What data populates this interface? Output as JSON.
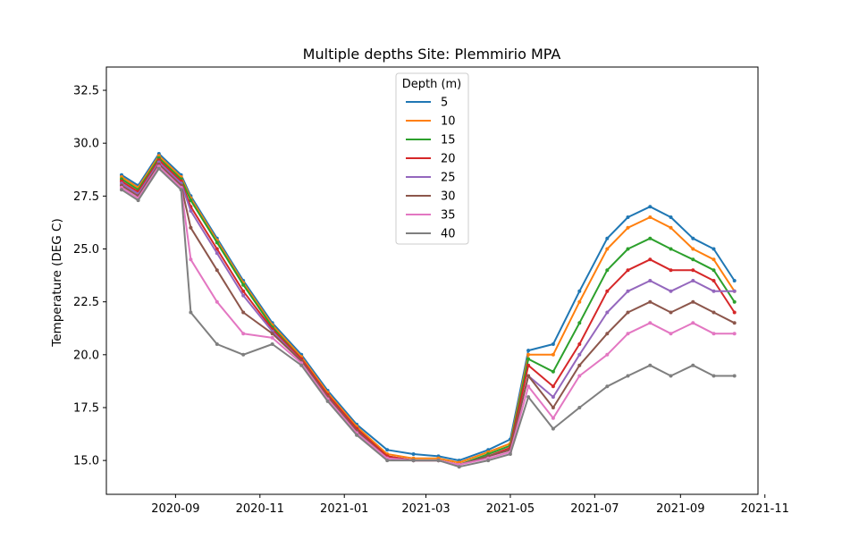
{
  "chart_data": {
    "type": "line",
    "title": "Multiple depths Site: Plemmirio MPA",
    "xlabel": "",
    "ylabel": "Temperature (DEG C)",
    "xlim": [
      "2020-07-13",
      "2021-10-27"
    ],
    "ylim": [
      13.4,
      33.6
    ],
    "x_ticks": [
      "2020-09",
      "2020-11",
      "2021-01",
      "2021-03",
      "2021-05",
      "2021-07",
      "2021-09",
      "2021-11"
    ],
    "y_ticks": [
      "15.0",
      "17.5",
      "20.0",
      "22.5",
      "25.0",
      "27.5",
      "30.0",
      "32.5"
    ],
    "grid": false,
    "legend": {
      "title": "Depth (m)",
      "placement": "top-center"
    },
    "colors": [
      "#1f77b4",
      "#ff7f0e",
      "#2ca02c",
      "#d62728",
      "#9467bd",
      "#8c564b",
      "#e377c2",
      "#7f7f7f"
    ],
    "x": [
      "2020-07-24",
      "2020-08-05",
      "2020-08-20",
      "2020-09-05",
      "2020-09-12",
      "2020-10-01",
      "2020-10-20",
      "2020-11-10",
      "2020-12-01",
      "2020-12-20",
      "2021-01-10",
      "2021-02-01",
      "2021-02-20",
      "2021-03-10",
      "2021-03-25",
      "2021-04-15",
      "2021-05-01",
      "2021-05-14",
      "2021-06-01",
      "2021-06-20",
      "2021-07-10",
      "2021-07-25",
      "2021-08-10",
      "2021-08-25",
      "2021-09-10",
      "2021-09-25",
      "2021-10-10"
    ],
    "series": [
      {
        "name": "5",
        "values": [
          28.5,
          28.0,
          29.5,
          28.5,
          27.5,
          25.5,
          23.5,
          21.5,
          20.0,
          18.3,
          16.7,
          15.5,
          15.3,
          15.2,
          15.0,
          15.5,
          16.0,
          20.2,
          20.5,
          23.0,
          25.5,
          26.5,
          27.0,
          26.5,
          25.5,
          25.0,
          23.5
        ]
      },
      {
        "name": "10",
        "values": [
          28.4,
          27.9,
          29.4,
          28.4,
          27.4,
          25.4,
          23.4,
          21.4,
          19.9,
          18.2,
          16.6,
          15.3,
          15.1,
          15.1,
          14.9,
          15.4,
          15.8,
          20.0,
          20.0,
          22.5,
          25.0,
          26.0,
          26.5,
          26.0,
          25.0,
          24.5,
          23.0
        ]
      },
      {
        "name": "15",
        "values": [
          28.3,
          27.8,
          29.3,
          28.3,
          27.3,
          25.3,
          23.3,
          21.3,
          19.8,
          18.1,
          16.5,
          15.2,
          15.0,
          15.0,
          14.8,
          15.3,
          15.7,
          19.8,
          19.2,
          21.5,
          24.0,
          25.0,
          25.5,
          25.0,
          24.5,
          24.0,
          22.5
        ]
      },
      {
        "name": "20",
        "values": [
          28.2,
          27.7,
          29.2,
          28.2,
          27.0,
          25.0,
          23.0,
          21.2,
          19.8,
          18.1,
          16.5,
          15.2,
          15.0,
          15.0,
          14.8,
          15.2,
          15.6,
          19.5,
          18.5,
          20.5,
          23.0,
          24.0,
          24.5,
          24.0,
          24.0,
          23.5,
          22.0
        ]
      },
      {
        "name": "25",
        "values": [
          28.1,
          27.6,
          29.1,
          28.1,
          26.8,
          24.8,
          22.8,
          21.1,
          19.7,
          18.0,
          16.4,
          15.1,
          15.0,
          15.0,
          14.8,
          15.2,
          15.5,
          19.0,
          18.0,
          20.0,
          22.0,
          23.0,
          23.5,
          23.0,
          23.5,
          23.0,
          23.0
        ]
      },
      {
        "name": "30",
        "values": [
          28.0,
          27.5,
          29.0,
          28.0,
          26.0,
          24.0,
          22.0,
          21.0,
          19.7,
          18.0,
          16.4,
          15.1,
          15.0,
          15.0,
          14.8,
          15.2,
          15.5,
          19.0,
          17.5,
          19.5,
          21.0,
          22.0,
          22.5,
          22.0,
          22.5,
          22.0,
          21.5
        ]
      },
      {
        "name": "35",
        "values": [
          27.9,
          27.4,
          28.9,
          27.9,
          24.5,
          22.5,
          21.0,
          20.8,
          19.6,
          17.9,
          16.3,
          15.1,
          15.0,
          15.0,
          14.8,
          15.1,
          15.4,
          18.5,
          17.0,
          19.0,
          20.0,
          21.0,
          21.5,
          21.0,
          21.5,
          21.0,
          21.0
        ]
      },
      {
        "name": "40",
        "values": [
          27.8,
          27.3,
          28.8,
          27.8,
          22.0,
          20.5,
          20.0,
          20.5,
          19.5,
          17.8,
          16.2,
          15.0,
          15.0,
          15.0,
          14.7,
          15.0,
          15.3,
          18.0,
          16.5,
          17.5,
          18.5,
          19.0,
          19.5,
          19.0,
          19.5,
          19.0,
          19.0
        ]
      }
    ]
  }
}
